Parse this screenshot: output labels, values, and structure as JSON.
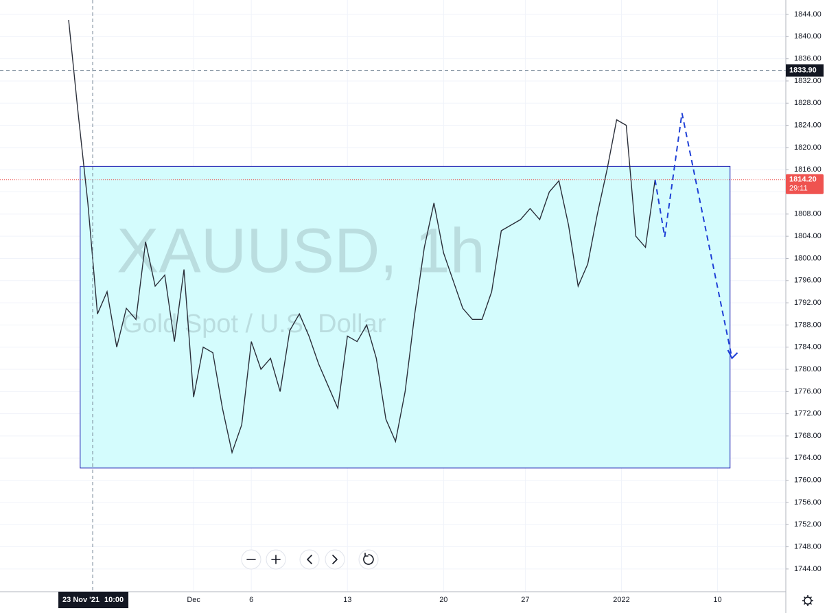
{
  "chart_data": {
    "type": "line",
    "watermark_symbol": "XAUUSD, 1h",
    "watermark_name": "Gold Spot / U.S. Dollar",
    "x": [
      -6.5,
      -6,
      -5.5,
      -5,
      -4.5,
      -4,
      -3.5,
      -3,
      -2.5,
      -2,
      -1.5,
      -1,
      -0.5,
      0,
      0.5,
      1,
      1.5,
      2,
      2.5,
      3,
      3.5,
      4,
      4.5,
      5,
      5.5,
      6,
      6.5,
      7,
      7.5,
      8,
      8.5,
      9,
      9.5,
      10,
      10.5,
      11,
      11.5,
      12,
      12.5,
      13,
      13.5,
      14,
      14.5,
      15,
      15.5,
      16,
      16.5,
      17,
      17.5,
      18,
      18.5,
      19,
      19.5,
      20,
      20.5,
      21,
      21.5,
      22,
      22.5,
      23,
      23.5,
      24
    ],
    "series": [
      {
        "color": "#2a2e39",
        "values": [
          1843,
          1826,
          1810,
          1790,
          1794,
          1784,
          1791,
          1789,
          1803,
          1795,
          1797,
          1785,
          1798,
          1775,
          1784,
          1783,
          1773,
          1765,
          1770,
          1785,
          1780,
          1782,
          1776,
          1787,
          1790,
          1786,
          1781,
          1777,
          1773,
          1786,
          1785,
          1788,
          1782,
          1771,
          1767,
          1776,
          1790,
          1802,
          1810,
          1801,
          1796,
          1791,
          1789,
          1789,
          1794,
          1805,
          1806,
          1807,
          1809,
          1807,
          1812,
          1814,
          1806,
          1795,
          1799,
          1808,
          1816,
          1825,
          1824,
          1804,
          1802,
          1814.2
        ]
      }
    ],
    "forecast": {
      "color": "#1e3fd6",
      "x": [
        24,
        24.5,
        25.4,
        28
      ],
      "values": [
        1814.2,
        1803.9,
        1826.2,
        1782
      ]
    },
    "zone": {
      "top": 1816.6,
      "bottom": 1762.2,
      "x_start": -5.9,
      "x_end": 27.9,
      "fill": "#d4fcfd",
      "stroke": "#1a1ab0"
    },
    "crosshair": {
      "x": -5.25,
      "x_label": "23 Nov '21",
      "time_label": "10:00",
      "y": 1833.9,
      "y_label": "1833.90"
    },
    "last_price": {
      "value": 1814.2,
      "label": "1814.20",
      "countdown": "29:11",
      "color": "#ef5350"
    },
    "xlim": [
      -10.07,
      30.8
    ],
    "ylim": [
      1739.9,
      1846.6
    ],
    "xticks": [
      {
        "value": 0,
        "label": "Dec"
      },
      {
        "value": 3,
        "label": "6"
      },
      {
        "value": 8,
        "label": "13"
      },
      {
        "value": 13,
        "label": "20"
      },
      {
        "value": 17.25,
        "label": "27"
      },
      {
        "value": 22.25,
        "label": "2022"
      },
      {
        "value": 27.25,
        "label": "10"
      }
    ],
    "yticks": [
      {
        "value": 1744,
        "label": "1744.00"
      },
      {
        "value": 1748,
        "label": "1748.00"
      },
      {
        "value": 1752,
        "label": "1752.00"
      },
      {
        "value": 1756,
        "label": "1756.00"
      },
      {
        "value": 1760,
        "label": "1760.00"
      },
      {
        "value": 1764,
        "label": "1764.00"
      },
      {
        "value": 1768,
        "label": "1768.00"
      },
      {
        "value": 1772,
        "label": "1772.00"
      },
      {
        "value": 1776,
        "label": "1776.00"
      },
      {
        "value": 1780,
        "label": "1780.00"
      },
      {
        "value": 1784,
        "label": "1784.00"
      },
      {
        "value": 1788,
        "label": "1788.00"
      },
      {
        "value": 1792,
        "label": "1792.00"
      },
      {
        "value": 1796,
        "label": "1796.00"
      },
      {
        "value": 1800,
        "label": "1800.00"
      },
      {
        "value": 1804,
        "label": "1804.00"
      },
      {
        "value": 1808,
        "label": "1808.00"
      },
      {
        "value": 1812,
        "label": "1812.00"
      },
      {
        "value": 1816,
        "label": "1816.00"
      },
      {
        "value": 1820,
        "label": "1820.00"
      },
      {
        "value": 1824,
        "label": "1824.00"
      },
      {
        "value": 1828,
        "label": "1828.00"
      },
      {
        "value": 1832,
        "label": "1832.00"
      },
      {
        "value": 1836,
        "label": "1836.00"
      },
      {
        "value": 1840,
        "label": "1840.00"
      },
      {
        "value": 1844,
        "label": "1844.00"
      }
    ],
    "grid": true
  }
}
